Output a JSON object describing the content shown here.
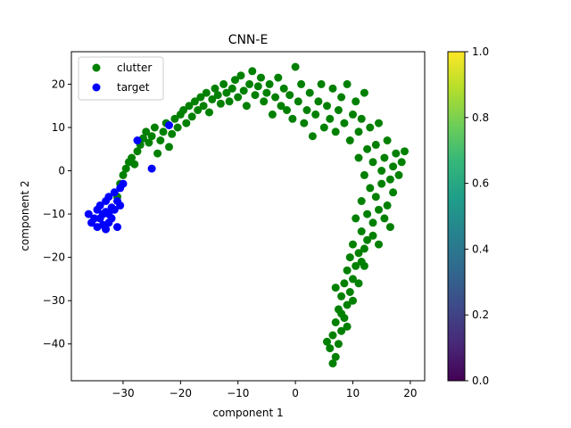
{
  "chart_data": {
    "type": "scatter",
    "title": "CNN-E",
    "xlabel": "component 1",
    "ylabel": "component 2",
    "xlim": [
      -39,
      22.5
    ],
    "ylim": [
      -48.5,
      27.5
    ],
    "xticks": [
      -30,
      -20,
      -10,
      0,
      10,
      20
    ],
    "yticks": [
      -40,
      -30,
      -20,
      -10,
      0,
      10,
      20
    ],
    "xtick_labels": [
      "−30",
      "−20",
      "−10",
      "0",
      "10",
      "20"
    ],
    "ytick_labels": [
      "−40",
      "−30",
      "−20",
      "−10",
      "0",
      "10",
      "20"
    ],
    "grid": false,
    "legend": {
      "position": "top-left"
    },
    "series": [
      {
        "name": "clutter",
        "color": "#008000",
        "points": [
          [
            -31,
            -6
          ],
          [
            -30.5,
            -3
          ],
          [
            -30,
            -1
          ],
          [
            -29.5,
            0.5
          ],
          [
            -29,
            2
          ],
          [
            -28.5,
            3
          ],
          [
            -28,
            1.5
          ],
          [
            -27.5,
            4.5
          ],
          [
            -27,
            6
          ],
          [
            -26.5,
            7.5
          ],
          [
            -26,
            9
          ],
          [
            -25.5,
            6.5
          ],
          [
            -25,
            8
          ],
          [
            -24.5,
            10
          ],
          [
            -24,
            4
          ],
          [
            -23.5,
            7
          ],
          [
            -23,
            9
          ],
          [
            -22.5,
            11
          ],
          [
            -22,
            5.5
          ],
          [
            -21.5,
            8.5
          ],
          [
            -21,
            12
          ],
          [
            -20.5,
            10
          ],
          [
            -20,
            13
          ],
          [
            -19.5,
            14
          ],
          [
            -19,
            11
          ],
          [
            -18.5,
            15
          ],
          [
            -18,
            12.5
          ],
          [
            -17.5,
            16
          ],
          [
            -17,
            14
          ],
          [
            -16.5,
            17
          ],
          [
            -16,
            15
          ],
          [
            -15.5,
            18
          ],
          [
            -15,
            13.5
          ],
          [
            -14.5,
            16.5
          ],
          [
            -14,
            19
          ],
          [
            -13.5,
            17.5
          ],
          [
            -13,
            15.5
          ],
          [
            -12.5,
            20
          ],
          [
            -12,
            18
          ],
          [
            -11.5,
            16
          ],
          [
            -11,
            19
          ],
          [
            -10.5,
            21
          ],
          [
            -10,
            17
          ],
          [
            -9.5,
            22
          ],
          [
            -9,
            18.5
          ],
          [
            -8.5,
            15
          ],
          [
            -8,
            20
          ],
          [
            -7.5,
            23
          ],
          [
            -7,
            17.5
          ],
          [
            -6.5,
            19.5
          ],
          [
            -6,
            21.5
          ],
          [
            -5.5,
            16
          ],
          [
            -5,
            18
          ],
          [
            -4.5,
            20
          ],
          [
            -4,
            13
          ],
          [
            -3.5,
            17
          ],
          [
            -3,
            21.5
          ],
          [
            -2.5,
            15
          ],
          [
            -2,
            19
          ],
          [
            -1.5,
            14
          ],
          [
            -1,
            17.5
          ],
          [
            -0.5,
            12
          ],
          [
            0,
            24
          ],
          [
            0.5,
            16
          ],
          [
            1,
            20
          ],
          [
            1.5,
            11
          ],
          [
            2,
            14
          ],
          [
            2.5,
            18
          ],
          [
            3,
            8
          ],
          [
            3.5,
            13
          ],
          [
            4,
            16
          ],
          [
            4.5,
            20
          ],
          [
            5,
            10
          ],
          [
            5.5,
            15
          ],
          [
            6,
            12
          ],
          [
            6.5,
            19
          ],
          [
            7,
            9
          ],
          [
            7.5,
            14
          ],
          [
            8,
            17
          ],
          [
            8.5,
            11
          ],
          [
            9,
            20
          ],
          [
            9.5,
            7
          ],
          [
            10,
            13
          ],
          [
            10.5,
            16
          ],
          [
            11,
            9
          ],
          [
            11.5,
            12
          ],
          [
            12,
            18
          ],
          [
            12.5,
            5
          ],
          [
            13,
            10
          ],
          [
            13.5,
            2
          ],
          [
            14,
            6
          ],
          [
            14.5,
            11
          ],
          [
            15,
            0
          ],
          [
            15.5,
            3
          ],
          [
            16,
            7
          ],
          [
            16.5,
            -2
          ],
          [
            17,
            1
          ],
          [
            17.5,
            4
          ],
          [
            18,
            -1
          ],
          [
            18.5,
            2
          ],
          [
            19,
            4.5
          ],
          [
            11,
            3
          ],
          [
            12,
            -1
          ],
          [
            13,
            -4
          ],
          [
            14,
            -6
          ],
          [
            15,
            -3
          ],
          [
            16,
            -8
          ],
          [
            17,
            -5
          ],
          [
            11.5,
            -7
          ],
          [
            12.5,
            -10
          ],
          [
            13.5,
            -12
          ],
          [
            14.5,
            -9
          ],
          [
            15.5,
            -11
          ],
          [
            16.5,
            -13
          ],
          [
            10.5,
            -11
          ],
          [
            11.5,
            -14
          ],
          [
            12.5,
            -16
          ],
          [
            13.5,
            -15
          ],
          [
            14.5,
            -17
          ],
          [
            10,
            -17
          ],
          [
            11,
            -19
          ],
          [
            12,
            -18
          ],
          [
            9.5,
            -20
          ],
          [
            10.5,
            -22
          ],
          [
            11.5,
            -21
          ],
          [
            9,
            -23
          ],
          [
            10,
            -25
          ],
          [
            8.5,
            -26
          ],
          [
            9.5,
            -28
          ],
          [
            8,
            -29
          ],
          [
            9,
            -31
          ],
          [
            7.5,
            -32
          ],
          [
            8.5,
            -34
          ],
          [
            7,
            -35
          ],
          [
            8,
            -37
          ],
          [
            6.5,
            -38
          ],
          [
            7.5,
            -40
          ],
          [
            6,
            -41
          ],
          [
            7,
            -43
          ],
          [
            6.5,
            -44.5
          ],
          [
            5.5,
            -39.5
          ],
          [
            9,
            -36
          ],
          [
            10,
            -30
          ],
          [
            11,
            -26
          ],
          [
            12,
            -22
          ],
          [
            7,
            -27
          ],
          [
            8,
            -33
          ]
        ]
      },
      {
        "name": "target",
        "color": "#0000ff",
        "points": [
          [
            -36,
            -10
          ],
          [
            -35.5,
            -12
          ],
          [
            -35,
            -11
          ],
          [
            -34.5,
            -9
          ],
          [
            -34.5,
            -13
          ],
          [
            -34,
            -8
          ],
          [
            -34,
            -11
          ],
          [
            -33.5,
            -10
          ],
          [
            -33.5,
            -12.5
          ],
          [
            -33,
            -7
          ],
          [
            -33,
            -9.5
          ],
          [
            -33,
            -13.5
          ],
          [
            -32.5,
            -6
          ],
          [
            -32.5,
            -10
          ],
          [
            -32.5,
            -12
          ],
          [
            -32,
            -11
          ],
          [
            -32,
            -8.5
          ],
          [
            -31.5,
            -5
          ],
          [
            -31.5,
            -9
          ],
          [
            -31,
            -13
          ],
          [
            -31,
            -7
          ],
          [
            -30.5,
            -4
          ],
          [
            -30,
            -3
          ],
          [
            -30.5,
            -8
          ],
          [
            -27.5,
            7
          ],
          [
            -25,
            0.5
          ],
          [
            -22,
            10.5
          ]
        ]
      }
    ],
    "colorbar": {
      "min": 0.0,
      "max": 1.0,
      "ticks": [
        0.0,
        0.2,
        0.4,
        0.6,
        0.8,
        1.0
      ],
      "tick_labels": [
        "0.0",
        "0.2",
        "0.4",
        "0.6",
        "0.8",
        "1.0"
      ],
      "colormap": "viridis",
      "stops": [
        "#440154",
        "#482878",
        "#3e4989",
        "#31688e",
        "#26828e",
        "#1f9e89",
        "#35b779",
        "#6ece58",
        "#b5de2b",
        "#fde725"
      ]
    }
  }
}
